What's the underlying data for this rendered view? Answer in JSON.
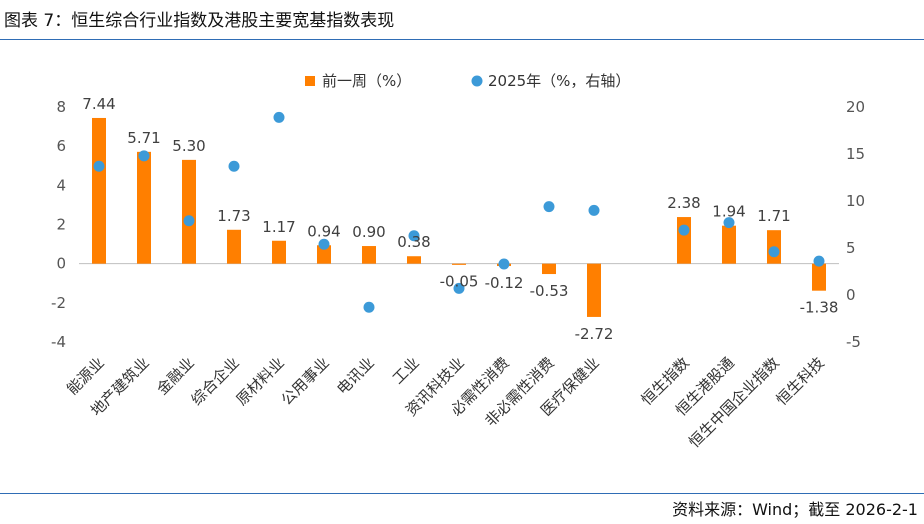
{
  "header": {
    "title": "图表 7：恒生综合行业指数及港股主要宽基指数表现"
  },
  "footer": {
    "source": "资料来源：Wind；截至 2026-2-1"
  },
  "colors": {
    "bar": "#ff7f00",
    "dot": "#3c9ad8",
    "rule": "#2f6db5",
    "axis": "#555555"
  },
  "chart_data": {
    "type": "bar",
    "title": "",
    "categories": [
      "能源业",
      "地产建筑业",
      "金融业",
      "综合企业",
      "原材料业",
      "公用事业",
      "电讯业",
      "工业",
      "资讯科技业",
      "必需性消费",
      "非必需性消费",
      "医疗保健业",
      "",
      "恒生指数",
      "恒生港股通",
      "恒生中国企业指数",
      "恒生科技"
    ],
    "series": [
      {
        "name": "前一周（%）",
        "type": "bar",
        "axis": "left",
        "values": [
          7.44,
          5.71,
          5.3,
          1.73,
          1.17,
          0.94,
          0.9,
          0.38,
          -0.05,
          -0.12,
          -0.53,
          -2.72,
          null,
          2.38,
          1.94,
          1.71,
          -1.38
        ],
        "labels": [
          "7.44",
          "5.71",
          "5.30",
          "1.73",
          "1.17",
          "0.94",
          "0.90",
          "0.38",
          "-0.05",
          "-0.12",
          "-0.53",
          "-2.72",
          "",
          "2.38",
          "1.94",
          "1.71",
          "-1.38"
        ]
      },
      {
        "name": "2025年（%，右轴）",
        "type": "scatter",
        "axis": "right",
        "values": [
          13.7,
          14.8,
          7.9,
          13.7,
          18.9,
          5.4,
          -1.3,
          6.3,
          0.7,
          3.3,
          9.4,
          9.0,
          null,
          6.9,
          7.7,
          4.6,
          3.6
        ]
      }
    ],
    "y_left": {
      "min": -4,
      "max": 8,
      "ticks": [
        -4,
        -2,
        0,
        2,
        4,
        6,
        8
      ]
    },
    "y_right": {
      "min": -5,
      "max": 20,
      "ticks": [
        -5,
        0,
        5,
        10,
        15,
        20
      ]
    },
    "legend_position": "top-center",
    "grid": false
  }
}
